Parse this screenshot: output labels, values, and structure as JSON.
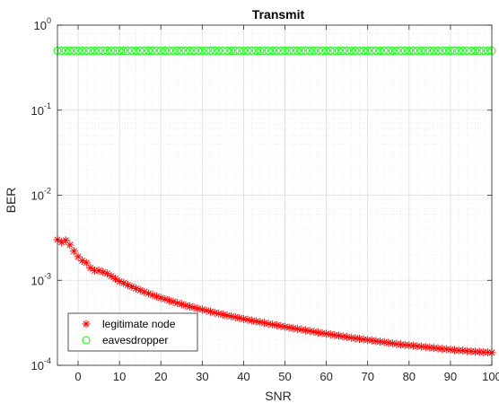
{
  "chart_data": {
    "type": "scatter",
    "title": "Transmit",
    "xlabel": "SNR",
    "ylabel": "BER",
    "xlim": [
      -5,
      100
    ],
    "ylim": [
      0.0001,
      1
    ],
    "yscale": "log",
    "grid": true,
    "minor_grid": true,
    "legend_position": "bottom-left",
    "x_ticks": [
      0,
      10,
      20,
      30,
      40,
      50,
      60,
      70,
      80,
      90,
      100
    ],
    "x_tick_labels": [
      "0",
      "10",
      "20",
      "30",
      "40",
      "50",
      "60",
      "70",
      "80",
      "90",
      "100"
    ],
    "y_ticks": [
      {
        "value": 0.0001,
        "base": "10",
        "exp": "-4"
      },
      {
        "value": 0.001,
        "base": "10",
        "exp": "-3"
      },
      {
        "value": 0.01,
        "base": "10",
        "exp": "-2"
      },
      {
        "value": 0.1,
        "base": "10",
        "exp": "-1"
      },
      {
        "value": 1,
        "base": "10",
        "exp": "0"
      }
    ],
    "series": [
      {
        "name": "legitimate node",
        "marker": "asterisk",
        "color": "#ff0000",
        "x": [
          -5,
          -4,
          -3,
          -2,
          -1,
          0,
          1,
          2,
          3,
          4,
          5,
          6,
          7,
          8,
          9,
          10,
          11,
          12,
          13,
          14,
          15,
          16,
          17,
          18,
          19,
          20,
          21,
          22,
          23,
          24,
          25,
          26,
          27,
          28,
          29,
          30,
          31,
          32,
          33,
          34,
          35,
          36,
          37,
          38,
          39,
          40,
          41,
          42,
          43,
          44,
          45,
          46,
          47,
          48,
          49,
          50,
          51,
          52,
          53,
          54,
          55,
          56,
          57,
          58,
          59,
          60,
          61,
          62,
          63,
          64,
          65,
          66,
          67,
          68,
          69,
          70,
          71,
          72,
          73,
          74,
          75,
          76,
          77,
          78,
          79,
          80,
          81,
          82,
          83,
          84,
          85,
          86,
          87,
          88,
          89,
          90,
          91,
          92,
          93,
          94,
          95,
          96,
          97,
          98,
          99,
          100
        ],
        "y": [
          0.003,
          0.0028,
          0.00295,
          0.0026,
          0.0022,
          0.0019,
          0.0017,
          0.0016,
          0.0014,
          0.0013,
          0.0013,
          0.00125,
          0.0012,
          0.00112,
          0.00104,
          0.00097,
          0.00093,
          0.00088,
          0.00084,
          0.0008,
          0.000765,
          0.00073,
          0.0007,
          0.00067,
          0.000645,
          0.00062,
          0.0006,
          0.000578,
          0.00056,
          0.00054,
          0.000523,
          0.000507,
          0.000492,
          0.000478,
          0.000465,
          0.000452,
          0.00044,
          0.000428,
          0.000417,
          0.000406,
          0.000396,
          0.000386,
          0.000377,
          0.000368,
          0.00036,
          0.000351,
          0.000343,
          0.000336,
          0.000329,
          0.000322,
          0.000315,
          0.000308,
          0.000302,
          0.000296,
          0.00029,
          0.000284,
          0.000278,
          0.000273,
          0.000268,
          0.000263,
          0.000258,
          0.000253,
          0.000248,
          0.000243,
          0.000239,
          0.000235,
          0.000231,
          0.000227,
          0.000223,
          0.000219,
          0.000215,
          0.000211,
          0.000208,
          0.000205,
          0.000202,
          0.000199,
          0.000196,
          0.000193,
          0.00019,
          0.000187,
          0.000184,
          0.000181,
          0.000178,
          0.000176,
          0.000174,
          0.000172,
          0.00017,
          0.000168,
          0.000166,
          0.000164,
          0.000162,
          0.00016,
          0.000158,
          0.000156,
          0.000155,
          0.000153,
          0.000151,
          0.00015,
          0.000149,
          0.000147,
          0.000146,
          0.000145,
          0.000144,
          0.000143,
          0.000142,
          0.000141
        ]
      },
      {
        "name": "eavesdropper",
        "marker": "circle",
        "color": "#00ff00",
        "x": [
          -5,
          -4,
          -3,
          -2,
          -1,
          0,
          1,
          2,
          3,
          4,
          5,
          6,
          7,
          8,
          9,
          10,
          11,
          12,
          13,
          14,
          15,
          16,
          17,
          18,
          19,
          20,
          21,
          22,
          23,
          24,
          25,
          26,
          27,
          28,
          29,
          30,
          31,
          32,
          33,
          34,
          35,
          36,
          37,
          38,
          39,
          40,
          41,
          42,
          43,
          44,
          45,
          46,
          47,
          48,
          49,
          50,
          51,
          52,
          53,
          54,
          55,
          56,
          57,
          58,
          59,
          60,
          61,
          62,
          63,
          64,
          65,
          66,
          67,
          68,
          69,
          70,
          71,
          72,
          73,
          74,
          75,
          76,
          77,
          78,
          79,
          80,
          81,
          82,
          83,
          84,
          85,
          86,
          87,
          88,
          89,
          90,
          91,
          92,
          93,
          94,
          95,
          96,
          97,
          98,
          99,
          100
        ],
        "y": [
          0.5,
          0.5,
          0.5,
          0.5,
          0.5,
          0.5,
          0.5,
          0.5,
          0.5,
          0.5,
          0.5,
          0.5,
          0.5,
          0.5,
          0.5,
          0.5,
          0.5,
          0.5,
          0.5,
          0.5,
          0.5,
          0.5,
          0.5,
          0.5,
          0.5,
          0.5,
          0.5,
          0.5,
          0.5,
          0.5,
          0.5,
          0.5,
          0.5,
          0.5,
          0.5,
          0.5,
          0.5,
          0.5,
          0.5,
          0.5,
          0.5,
          0.5,
          0.5,
          0.5,
          0.5,
          0.5,
          0.5,
          0.5,
          0.5,
          0.5,
          0.5,
          0.5,
          0.5,
          0.5,
          0.5,
          0.5,
          0.5,
          0.5,
          0.5,
          0.5,
          0.5,
          0.5,
          0.5,
          0.5,
          0.5,
          0.5,
          0.5,
          0.5,
          0.5,
          0.5,
          0.5,
          0.5,
          0.5,
          0.5,
          0.5,
          0.5,
          0.5,
          0.5,
          0.5,
          0.5,
          0.5,
          0.5,
          0.5,
          0.5,
          0.5,
          0.5,
          0.5,
          0.5,
          0.5,
          0.5,
          0.5,
          0.5,
          0.5,
          0.5,
          0.5,
          0.5,
          0.5,
          0.5,
          0.5,
          0.5,
          0.5,
          0.5,
          0.5,
          0.5,
          0.5,
          0.5
        ]
      }
    ]
  }
}
